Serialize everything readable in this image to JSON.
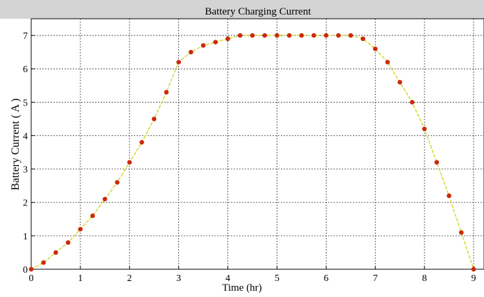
{
  "chart_data": {
    "type": "line",
    "title": "Battery Charging Current",
    "xlabel": "Time (hr)",
    "ylabel": "Battery Current ( A )",
    "xlim": [
      0,
      9
    ],
    "ylim": [
      0,
      7.5
    ],
    "x_ticks": [
      0,
      1,
      2,
      3,
      4,
      5,
      6,
      7,
      8,
      9
    ],
    "y_ticks": [
      0,
      1,
      2,
      3,
      4,
      5,
      6,
      7
    ],
    "grid": true,
    "line_color": "#d8d83a",
    "marker_color": "#cc2a0a",
    "series": [
      {
        "x": [
          0,
          0.25,
          0.5,
          0.75,
          1,
          1.25,
          1.5,
          1.75,
          2,
          2.25,
          2.5,
          2.75,
          3,
          3.25,
          3.5,
          3.75,
          4,
          4.25,
          4.5,
          4.75,
          5,
          5.25,
          5.5,
          5.75,
          6,
          6.25,
          6.5,
          6.75,
          7,
          7.25,
          7.5,
          7.75,
          8,
          8.25,
          8.5,
          8.75,
          9
        ],
        "y": [
          0,
          0.2,
          0.5,
          0.8,
          1.2,
          1.6,
          2.1,
          2.6,
          3.2,
          3.8,
          4.5,
          5.3,
          6.2,
          6.5,
          6.7,
          6.8,
          6.9,
          7.0,
          7.0,
          7.0,
          7.0,
          7.0,
          7.0,
          7.0,
          7.0,
          7.0,
          7.0,
          6.9,
          6.6,
          6.2,
          5.6,
          5.0,
          4.2,
          3.2,
          2.2,
          1.1,
          0
        ]
      }
    ]
  }
}
